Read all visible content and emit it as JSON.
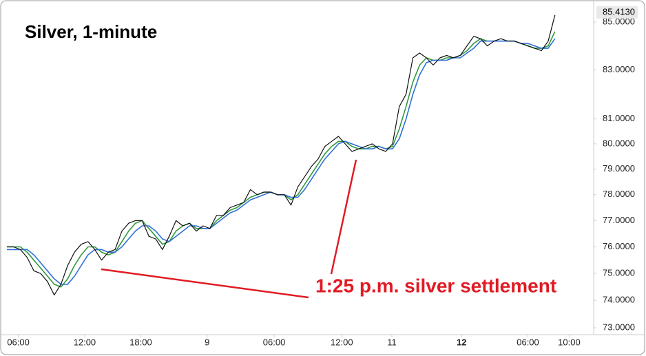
{
  "chart_data": {
    "type": "line",
    "title": "Silver, 1-minute",
    "annotation": "1:25 p.m. silver settlement",
    "last_price": {
      "value": 85.413,
      "label": "85.4130"
    },
    "log_scale": true,
    "grid": false,
    "x": [
      0,
      1,
      2,
      3,
      4,
      5,
      6,
      7,
      8,
      9,
      10,
      11,
      12,
      13,
      14,
      15,
      16,
      17,
      18,
      19,
      20,
      21,
      22,
      23,
      24,
      25,
      26,
      27,
      28,
      29,
      30,
      31,
      32,
      33,
      34,
      35,
      36,
      37,
      38,
      39,
      40,
      41,
      42,
      43,
      44,
      45,
      46,
      47,
      48,
      49,
      50,
      51,
      52,
      53,
      54,
      55,
      56,
      57,
      58,
      59,
      60,
      61,
      62,
      63,
      64,
      65,
      66,
      67,
      68,
      69,
      70,
      71,
      72,
      73,
      74,
      75,
      76,
      77,
      78,
      79,
      80,
      81
    ],
    "xlim": [
      -0.5,
      85.7
    ],
    "xticks": [
      {
        "value": 1.7,
        "label": "06:00"
      },
      {
        "value": 11.5,
        "label": "12:00"
      },
      {
        "value": 19.8,
        "label": "18:00"
      },
      {
        "value": 29.6,
        "label": "9"
      },
      {
        "value": 39.5,
        "label": "06:00"
      },
      {
        "value": 49.5,
        "label": "12:00"
      },
      {
        "value": 56.9,
        "label": "11"
      },
      {
        "value": 67.2,
        "label": "12",
        "bold": true
      },
      {
        "value": 77,
        "label": "06:00"
      },
      {
        "value": 83.1,
        "label": "10:00"
      }
    ],
    "ylim": [
      72.75,
      85.94
    ],
    "yticks": [
      {
        "value": 73,
        "label": "73.0000"
      },
      {
        "value": 74,
        "label": "74.0000"
      },
      {
        "value": 75,
        "label": "75.0000"
      },
      {
        "value": 76,
        "label": "76.0000"
      },
      {
        "value": 77,
        "label": "77.0000"
      },
      {
        "value": 78,
        "label": "78.0000"
      },
      {
        "value": 79,
        "label": "79.0000"
      },
      {
        "value": 80,
        "label": "80.0000"
      },
      {
        "value": 81,
        "label": "81.0000"
      },
      {
        "value": 83,
        "label": "83.0000"
      },
      {
        "value": 85,
        "label": "85.0000"
      }
    ],
    "series": [
      {
        "color": "#111111",
        "values": [
          76.0,
          76.0,
          75.9,
          75.6,
          75.1,
          75.0,
          74.7,
          74.2,
          74.6,
          75.3,
          75.8,
          76.1,
          76.2,
          75.9,
          75.5,
          75.8,
          75.9,
          76.6,
          76.9,
          77.0,
          77.0,
          76.4,
          76.3,
          75.9,
          76.4,
          77.0,
          76.8,
          76.9,
          76.6,
          76.8,
          76.7,
          77.2,
          77.2,
          77.5,
          77.6,
          77.7,
          78.2,
          78.0,
          78.1,
          78.1,
          78.0,
          78.0,
          77.6,
          78.3,
          78.7,
          79.1,
          79.4,
          79.9,
          80.1,
          80.3,
          80.0,
          79.7,
          79.8,
          79.9,
          80.0,
          79.8,
          79.7,
          80.0,
          81.5,
          82.0,
          83.5,
          83.7,
          83.5,
          83.2,
          83.5,
          83.6,
          83.5,
          83.6,
          84.0,
          84.4,
          84.3,
          84.0,
          84.2,
          84.3,
          84.2,
          84.2,
          84.1,
          84.0,
          83.9,
          83.8,
          84.2,
          85.3
        ]
      },
      {
        "color": "#2e9a3a",
        "values": [
          76.0,
          76.0,
          76.0,
          75.8,
          75.5,
          75.2,
          74.9,
          74.6,
          74.5,
          74.8,
          75.3,
          75.7,
          76.0,
          76.0,
          75.8,
          75.7,
          75.8,
          76.2,
          76.6,
          76.9,
          77.0,
          76.7,
          76.4,
          76.1,
          76.2,
          76.6,
          76.8,
          76.9,
          76.7,
          76.7,
          76.7,
          77.0,
          77.2,
          77.4,
          77.5,
          77.7,
          77.9,
          78.0,
          78.1,
          78.1,
          78.0,
          78.0,
          77.8,
          78.0,
          78.4,
          78.8,
          79.2,
          79.6,
          79.9,
          80.1,
          80.1,
          79.9,
          79.8,
          79.8,
          79.9,
          79.9,
          79.8,
          79.9,
          80.6,
          81.5,
          82.5,
          83.2,
          83.5,
          83.4,
          83.4,
          83.5,
          83.5,
          83.6,
          83.8,
          84.1,
          84.3,
          84.2,
          84.2,
          84.2,
          84.2,
          84.2,
          84.1,
          84.0,
          83.9,
          83.9,
          84.0,
          84.6
        ]
      },
      {
        "color": "#2f6fd6",
        "values": [
          75.9,
          75.9,
          75.9,
          75.9,
          75.7,
          75.4,
          75.1,
          74.8,
          74.6,
          74.6,
          74.9,
          75.3,
          75.7,
          75.9,
          75.9,
          75.8,
          75.8,
          76.0,
          76.3,
          76.6,
          76.8,
          76.8,
          76.6,
          76.3,
          76.2,
          76.4,
          76.6,
          76.8,
          76.8,
          76.7,
          76.7,
          76.9,
          77.1,
          77.3,
          77.4,
          77.6,
          77.8,
          77.9,
          78.0,
          78.1,
          78.0,
          78.0,
          77.9,
          77.9,
          78.2,
          78.6,
          79.0,
          79.4,
          79.7,
          80.0,
          80.1,
          80.0,
          79.9,
          79.8,
          79.8,
          79.9,
          79.8,
          79.8,
          80.2,
          81.0,
          82.0,
          82.8,
          83.3,
          83.4,
          83.4,
          83.4,
          83.5,
          83.5,
          83.7,
          83.9,
          84.2,
          84.2,
          84.2,
          84.2,
          84.2,
          84.2,
          84.1,
          84.1,
          84.0,
          83.9,
          83.9,
          84.3
        ]
      }
    ]
  }
}
